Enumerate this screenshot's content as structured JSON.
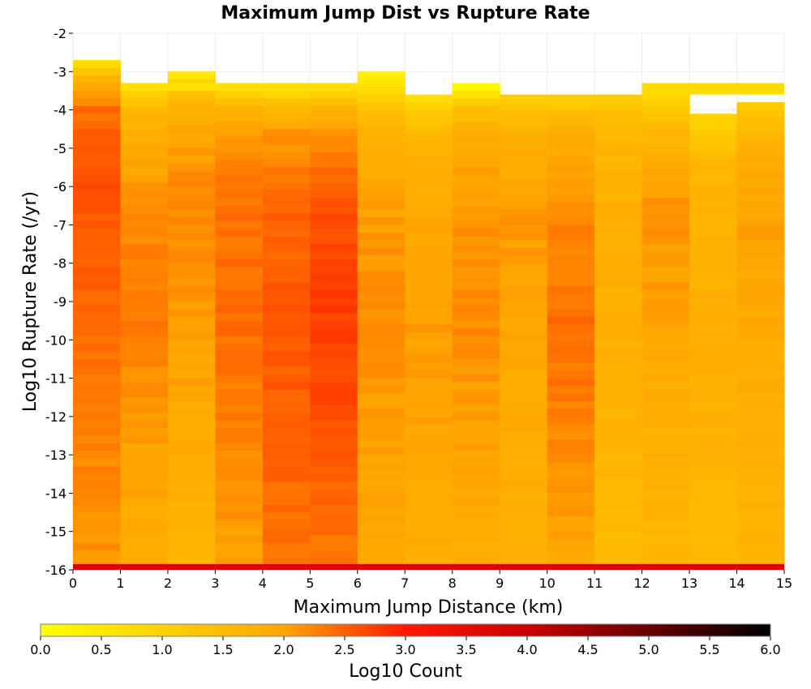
{
  "chart_data": {
    "type": "heatmap",
    "title": "Maximum Jump Dist vs Rupture Rate",
    "xlabel": "Maximum Jump Distance (km)",
    "ylabel": "Log10 Rupture Rate (/yr)",
    "xlim": [
      0,
      15
    ],
    "ylim": [
      -16,
      -2
    ],
    "x_ticks": [
      "0",
      "1",
      "2",
      "3",
      "4",
      "5",
      "6",
      "7",
      "8",
      "9",
      "10",
      "11",
      "12",
      "13",
      "14",
      "15"
    ],
    "y_ticks": [
      "-2",
      "-3",
      "-4",
      "-5",
      "-6",
      "-7",
      "-8",
      "-9",
      "-10",
      "-11",
      "-12",
      "-13",
      "-14",
      "-15",
      "-16"
    ],
    "x_bin_width": 1,
    "y_bin_height": 0.2,
    "grid": true,
    "colorbar": {
      "label": "Log10 Count",
      "range": [
        0,
        6
      ],
      "ticks": [
        "0.0",
        "0.5",
        "1.0",
        "1.5",
        "2.0",
        "2.5",
        "3.0",
        "3.5",
        "4.0",
        "4.5",
        "5.0",
        "5.5",
        "6.0"
      ],
      "colors": [
        "#ffff00",
        "#ffa500",
        "#ff0000",
        "#000000"
      ],
      "placement": "bottom"
    },
    "bottom_row": {
      "y_range": [
        -16,
        -15.85
      ],
      "value": 3.8
    },
    "columns": [
      {
        "x": 0.5,
        "top": -2.7,
        "profile": [
          [
            0,
            0.9
          ],
          [
            0.5,
            1.9
          ],
          [
            1.2,
            2.4
          ],
          [
            3,
            2.6
          ],
          [
            6,
            2.45
          ],
          [
            9,
            2.3
          ],
          [
            13.3,
            2.1
          ]
        ]
      },
      {
        "x": 1.5,
        "top": -3.3,
        "profile": [
          [
            0,
            0.7
          ],
          [
            0.5,
            1.5
          ],
          [
            1.2,
            1.8
          ],
          [
            3,
            2.2
          ],
          [
            6,
            2.3
          ],
          [
            9,
            2.1
          ],
          [
            12.7,
            1.8
          ]
        ]
      },
      {
        "x": 2.5,
        "top": -3.0,
        "profile": [
          [
            0,
            0.6
          ],
          [
            0.5,
            1.5
          ],
          [
            1.2,
            1.9
          ],
          [
            3,
            2.2
          ],
          [
            6,
            2.1
          ],
          [
            9,
            1.9
          ],
          [
            13,
            1.6
          ]
        ]
      },
      {
        "x": 3.5,
        "top": -3.3,
        "profile": [
          [
            0,
            0.7
          ],
          [
            0.5,
            1.6
          ],
          [
            1.2,
            2.1
          ],
          [
            3,
            2.35
          ],
          [
            6,
            2.4
          ],
          [
            9,
            2.25
          ],
          [
            12.7,
            2.0
          ]
        ]
      },
      {
        "x": 4.5,
        "top": -3.3,
        "profile": [
          [
            0,
            0.5
          ],
          [
            0.5,
            1.5
          ],
          [
            1.2,
            2.1
          ],
          [
            3,
            2.45
          ],
          [
            6,
            2.55
          ],
          [
            9,
            2.5
          ],
          [
            12.7,
            2.35
          ]
        ]
      },
      {
        "x": 5.5,
        "top": -3.3,
        "profile": [
          [
            0,
            0.6
          ],
          [
            0.5,
            1.6
          ],
          [
            1.2,
            2.2
          ],
          [
            3,
            2.55
          ],
          [
            5,
            2.8
          ],
          [
            9,
            2.6
          ],
          [
            12.7,
            2.3
          ]
        ]
      },
      {
        "x": 6.5,
        "top": -3.0,
        "profile": [
          [
            0,
            0.3
          ],
          [
            0.5,
            0.9
          ],
          [
            1.2,
            1.6
          ],
          [
            3,
            2.0
          ],
          [
            6,
            2.2
          ],
          [
            9,
            2.05
          ],
          [
            13,
            1.9
          ]
        ]
      },
      {
        "x": 7.5,
        "top": -3.6,
        "profile": [
          [
            0,
            0.8
          ],
          [
            0.5,
            1.3
          ],
          [
            1.2,
            1.7
          ],
          [
            3,
            1.95
          ],
          [
            6,
            2.05
          ],
          [
            9,
            1.95
          ],
          [
            12.4,
            1.8
          ]
        ]
      },
      {
        "x": 8.5,
        "top": -3.3,
        "profile": [
          [
            0,
            0.2
          ],
          [
            0.5,
            1.3
          ],
          [
            1.2,
            1.8
          ],
          [
            3,
            2.1
          ],
          [
            6,
            2.2
          ],
          [
            9,
            2.0
          ],
          [
            12.7,
            1.8
          ]
        ]
      },
      {
        "x": 9.5,
        "top": -3.6,
        "profile": [
          [
            0,
            1.1
          ],
          [
            0.5,
            1.5
          ],
          [
            1.2,
            1.8
          ],
          [
            3,
            2.1
          ],
          [
            6,
            1.95
          ],
          [
            9,
            1.85
          ],
          [
            12.4,
            1.7
          ]
        ]
      },
      {
        "x": 10.5,
        "top": -3.6,
        "profile": [
          [
            0,
            1.1
          ],
          [
            0.5,
            1.6
          ],
          [
            1.2,
            1.9
          ],
          [
            3,
            2.2
          ],
          [
            6,
            2.4
          ],
          [
            9,
            2.2
          ],
          [
            12.4,
            1.9
          ]
        ]
      },
      {
        "x": 11.5,
        "top": -3.6,
        "profile": [
          [
            0,
            1.1
          ],
          [
            0.5,
            1.4
          ],
          [
            1.2,
            1.6
          ],
          [
            3,
            1.8
          ],
          [
            6,
            1.8
          ],
          [
            9,
            1.65
          ],
          [
            12.4,
            1.5
          ]
        ]
      },
      {
        "x": 12.5,
        "top": -3.3,
        "profile": [
          [
            0,
            0.7
          ],
          [
            0.5,
            1.1
          ],
          [
            1.2,
            1.6
          ],
          [
            3,
            2.15
          ],
          [
            6,
            2.0
          ],
          [
            9,
            1.75
          ],
          [
            12.7,
            1.6
          ]
        ]
      },
      {
        "x": 13.5,
        "top": -4.1,
        "profile": [
          [
            0,
            0.9
          ],
          [
            0.5,
            1.3
          ],
          [
            1.2,
            1.6
          ],
          [
            3,
            1.7
          ],
          [
            6,
            1.8
          ],
          [
            9,
            1.65
          ],
          [
            11.9,
            1.5
          ]
        ]
      },
      {
        "x": 14.5,
        "top": -3.8,
        "profile": [
          [
            0,
            1.1
          ],
          [
            0.5,
            1.5
          ],
          [
            1.2,
            1.8
          ],
          [
            3,
            2.0
          ],
          [
            6,
            1.9
          ],
          [
            9,
            1.75
          ],
          [
            12.2,
            1.6
          ]
        ]
      }
    ],
    "thin_top_strip": [
      {
        "x_range": [
          1,
          6
        ],
        "y_range": [
          -3.5,
          -3.3
        ],
        "value": 0.7
      },
      {
        "x_range": [
          12,
          15
        ],
        "y_range": [
          -3.6,
          -3.3
        ],
        "value": 0.8
      }
    ]
  }
}
